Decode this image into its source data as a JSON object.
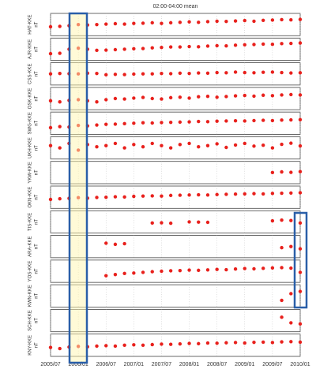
{
  "chart_data": {
    "type": "scatter",
    "title": "02:00-04:00 mean",
    "y_label": "nT",
    "x": [
      "2005/07",
      "2005/09",
      "2005/11",
      "2006/01",
      "2006/03",
      "2006/05",
      "2006/07",
      "2006/09",
      "2006/11",
      "2007/01",
      "2007/03",
      "2007/05",
      "2007/07",
      "2007/09",
      "2007/11",
      "2008/01",
      "2008/03",
      "2008/05",
      "2008/07",
      "2008/09",
      "2008/11",
      "2009/01",
      "2009/03",
      "2009/05",
      "2009/07",
      "2009/09",
      "2009/11",
      "2010/01"
    ],
    "xticks": [
      "2005/07",
      "2006/01",
      "2006/07",
      "2007/01",
      "2007/07",
      "2008/01",
      "2008/07",
      "2009/01",
      "2009/07",
      "2010/01"
    ],
    "ylim": [
      0,
      10
    ],
    "series": [
      {
        "name": "HAT-KKE",
        "color": "#e8201c",
        "values": [
          4,
          4.2,
          4.5,
          5,
          4.8,
          5,
          5.2,
          5.4,
          5.2,
          5.5,
          5.6,
          5.8,
          5.5,
          5.8,
          6,
          6.2,
          6,
          6.3,
          6.5,
          6.4,
          6.6,
          6.8,
          6.5,
          6.9,
          7,
          7.2,
          7.1,
          7.3
        ]
      },
      {
        "name": "AJR-KKE",
        "color": "#e8201c",
        "values": [
          3,
          3.2,
          5,
          5.5,
          5,
          4.5,
          4.6,
          4.8,
          5,
          5.2,
          5.3,
          5.6,
          5.8,
          6,
          6,
          6.2,
          6.1,
          6.4,
          6.6,
          6.5,
          6.8,
          7,
          7.1,
          7.3,
          7.2,
          7.5,
          7.6,
          7.8
        ]
      },
      {
        "name": "CSS-KKE",
        "color": "#e8201c",
        "values": [
          5,
          5.2,
          5.1,
          5,
          5.3,
          5.2,
          4.6,
          4.8,
          4.7,
          4.9,
          5,
          5,
          5.2,
          5.1,
          5.3,
          5.2,
          5.4,
          5.3,
          5.6,
          5.5,
          5.8,
          5.6,
          5.5,
          5.7,
          5.8,
          5.6,
          5.4,
          5.5
        ]
      },
      {
        "name": "OSK-KKE",
        "color": "#e8201c",
        "values": [
          4,
          3.5,
          4.2,
          4.5,
          4,
          3.5,
          4.5,
          5,
          4.8,
          5.2,
          5.5,
          5,
          4.8,
          5.4,
          5.6,
          5.2,
          5.8,
          6,
          5.6,
          5.9,
          6.2,
          6.4,
          6.1,
          6.5,
          6.3,
          6.6,
          6.8,
          6.6
        ]
      },
      {
        "name": "SWG-KKE",
        "color": "#e8201c",
        "values": [
          3,
          3.5,
          3.3,
          4,
          3.8,
          4.2,
          4.5,
          4.6,
          4.8,
          5,
          5.2,
          5.1,
          5.3,
          5.4,
          5.5,
          5.6,
          5.8,
          5.7,
          5.9,
          6,
          6.1,
          6,
          6.2,
          6.3,
          6.2,
          6.4,
          6.5,
          6.6
        ]
      },
      {
        "name": "UKH-KKE",
        "color": "#e8201c",
        "values": [
          6,
          5,
          7,
          4,
          6.5,
          5.5,
          6,
          7,
          5,
          6.5,
          5.5,
          7,
          6,
          5,
          6.5,
          7,
          5.5,
          6,
          6.8,
          5.2,
          6.3,
          7,
          5.8,
          6.2,
          5,
          6.6,
          7.1,
          5.9
        ]
      },
      {
        "name": "YKW-KKE",
        "color": "#e8201c",
        "values": [
          null,
          null,
          null,
          null,
          null,
          null,
          null,
          null,
          null,
          null,
          null,
          null,
          null,
          null,
          null,
          null,
          null,
          null,
          null,
          null,
          null,
          null,
          null,
          null,
          5,
          5.3,
          5.1,
          5.4
        ]
      },
      {
        "name": "OKN-KKE",
        "color": "#e8201c",
        "values": [
          4,
          4.3,
          4.5,
          4.8,
          4.6,
          4.9,
          5,
          5.2,
          5.1,
          5.4,
          5.5,
          5.6,
          5.5,
          5.8,
          5.9,
          6,
          6.1,
          6,
          6.2,
          6.3,
          6.4,
          6.5,
          6.6,
          6.5,
          6.7,
          6.8,
          6.9,
          7
        ]
      },
      {
        "name": "TIS-KKE",
        "color": "#e8201c",
        "values": [
          null,
          null,
          null,
          null,
          null,
          null,
          null,
          null,
          null,
          null,
          null,
          4.5,
          4.6,
          4.4,
          null,
          5,
          4.9,
          4.8,
          null,
          null,
          null,
          null,
          null,
          null,
          5.5,
          5.8,
          5.6,
          4.5
        ]
      },
      {
        "name": "ARA-KKE",
        "color": "#e8201c",
        "values": [
          null,
          null,
          null,
          null,
          null,
          null,
          6.5,
          6,
          6.3,
          null,
          null,
          null,
          null,
          null,
          null,
          null,
          null,
          null,
          null,
          null,
          null,
          null,
          null,
          null,
          null,
          4.5,
          5,
          4
        ]
      },
      {
        "name": "YOS-KKE",
        "color": "#e8201c",
        "values": [
          null,
          null,
          null,
          null,
          null,
          null,
          3,
          3.5,
          4,
          4.2,
          4.5,
          4.8,
          5,
          5.2,
          5.3,
          5.5,
          5.4,
          5.6,
          5.8,
          5.7,
          6,
          6.2,
          6.1,
          6.3,
          6.5,
          6.6,
          6.4,
          4.5
        ]
      },
      {
        "name": "KWN-KKE",
        "color": "#e8201c",
        "values": [
          null,
          null,
          null,
          null,
          null,
          null,
          null,
          null,
          null,
          null,
          null,
          null,
          null,
          null,
          null,
          null,
          null,
          null,
          null,
          null,
          null,
          null,
          null,
          null,
          null,
          3,
          6,
          7
        ]
      },
      {
        "name": "SCH-KKE",
        "color": "#e8201c",
        "values": [
          null,
          null,
          null,
          null,
          null,
          null,
          null,
          null,
          null,
          null,
          null,
          null,
          null,
          null,
          null,
          null,
          null,
          null,
          null,
          null,
          null,
          null,
          null,
          null,
          null,
          6.5,
          4,
          3.5
        ]
      },
      {
        "name": "KNY-KKE",
        "color": "#e8201c",
        "values": [
          4,
          3.5,
          4.2,
          4.5,
          4.3,
          4.6,
          4.8,
          4.6,
          5,
          5.2,
          5,
          5.3,
          5.5,
          5.4,
          5.6,
          5.8,
          5.7,
          6,
          5.9,
          6.1,
          6.2,
          6,
          6.3,
          6.4,
          6.2,
          6.5,
          6.6,
          6.4
        ]
      }
    ]
  }
}
